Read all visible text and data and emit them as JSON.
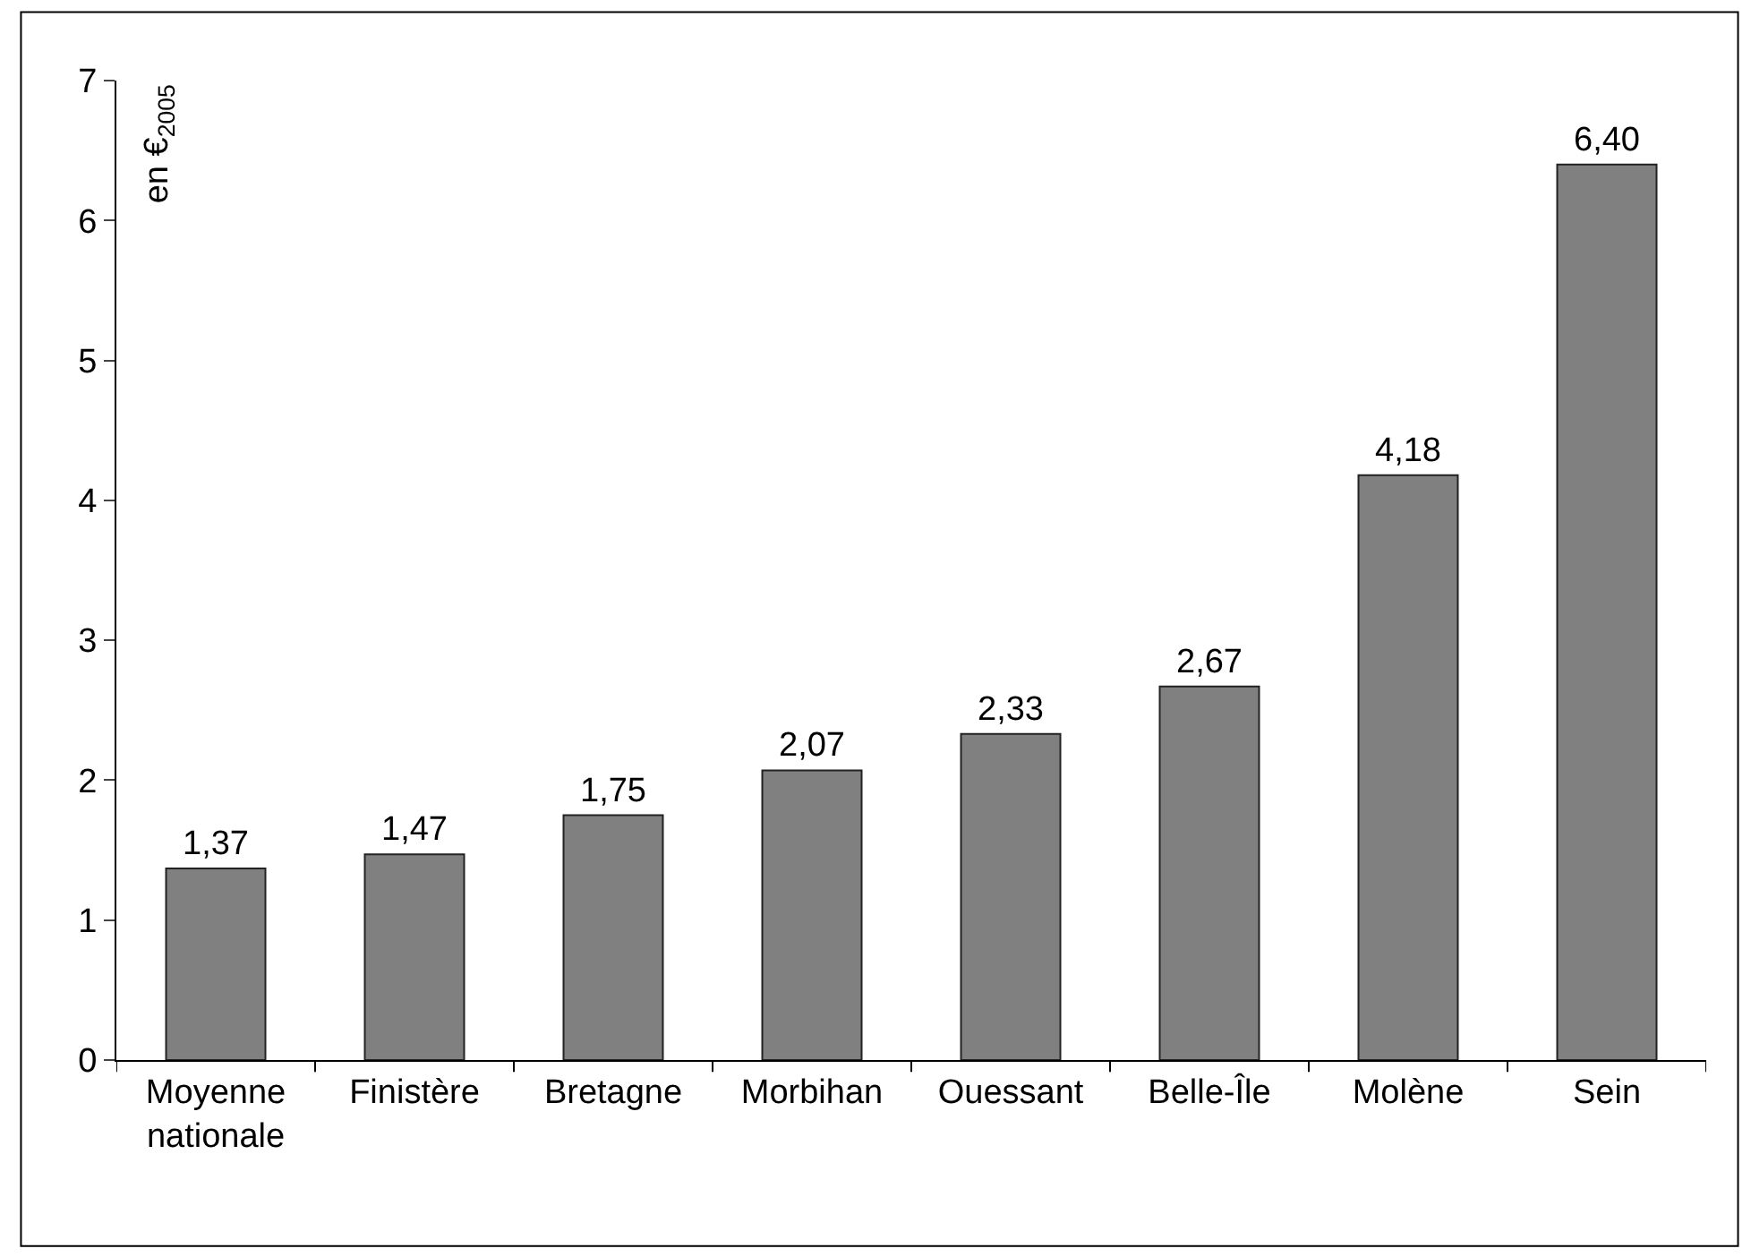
{
  "chart_data": {
    "type": "bar",
    "ylabel": "en €$_{2005}$",
    "categories": [
      "Moyenne nationale",
      "Finistère",
      "Bretagne",
      "Morbihan",
      "Ouessant",
      "Belle-Île",
      "Molène",
      "Sein"
    ],
    "values": [
      1.37,
      1.47,
      1.75,
      2.07,
      2.33,
      2.67,
      4.18,
      6.4
    ],
    "value_labels": [
      "1,37",
      "1,47",
      "1,75",
      "2,07",
      "2,33",
      "2,67",
      "4,18",
      "6,40"
    ],
    "color": "#808080",
    "ylim": [
      0,
      7
    ],
    "yticks": [
      0,
      1,
      2,
      3,
      4,
      5,
      6,
      7
    ]
  }
}
